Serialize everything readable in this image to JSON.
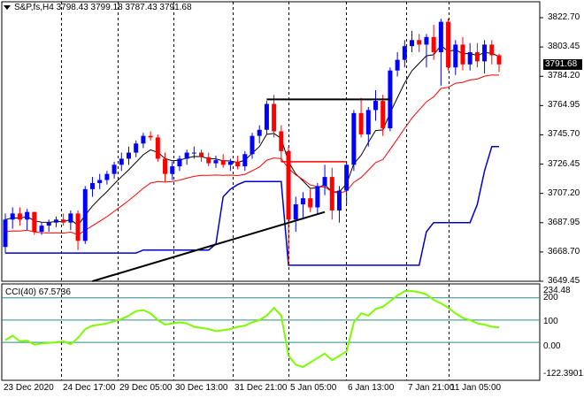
{
  "header": {
    "symbol": "S&P,fs,H4",
    "ohlc": "3798.43 3799.18 3787.43 3791.68"
  },
  "current_price": "3791.68",
  "price_axis": {
    "labels": [
      "3822.70",
      "3803.45",
      "3784.20",
      "3764.95",
      "3745.70",
      "3726.45",
      "3707.20",
      "3687.95",
      "3668.70",
      "3649.45"
    ]
  },
  "cci_panel": {
    "title": "CCI(40) 67.5736",
    "max_label": "234.48",
    "min_label": "-122.3901",
    "levels": [
      "200",
      "100",
      "0.00"
    ]
  },
  "time_axis": {
    "labels": [
      "23 Dec 2020",
      "24 Dec 17:00",
      "29 Dec 05:00",
      "30 Dec 13:00",
      "31 Dec 21:00",
      "5 Jan 05:00",
      "6 Jan 13:00",
      "7 Jan 21:00",
      "11 Jan 05:00"
    ]
  },
  "colors": {
    "bull": "#0000ff",
    "bear": "#ff0000",
    "ma_fast": "#000000",
    "ma_slow": "#ff0000",
    "band": "#0000cd",
    "cci": "#7cfc00",
    "grid": "#000000",
    "level_line": "#2e8b8b"
  },
  "chart_data": {
    "type": "candlestick",
    "y_range": [
      3649.45,
      3822.7
    ],
    "candles": [
      [
        3672,
        3694,
        3668,
        3690
      ],
      [
        3690,
        3698,
        3684,
        3694
      ],
      [
        3694,
        3698,
        3686,
        3690
      ],
      [
        3690,
        3697,
        3683,
        3695
      ],
      [
        3695,
        3695,
        3680,
        3682
      ],
      [
        3682,
        3688,
        3680,
        3686
      ],
      [
        3686,
        3690,
        3682,
        3688
      ],
      [
        3688,
        3692,
        3685,
        3690
      ],
      [
        3690,
        3694,
        3686,
        3688
      ],
      [
        3688,
        3696,
        3683,
        3694
      ],
      [
        3694,
        3696,
        3670,
        3676
      ],
      [
        3676,
        3712,
        3674,
        3710
      ],
      [
        3710,
        3718,
        3705,
        3714
      ],
      [
        3714,
        3720,
        3710,
        3716
      ],
      [
        3716,
        3722,
        3713,
        3720
      ],
      [
        3720,
        3728,
        3717,
        3726
      ],
      [
        3726,
        3734,
        3722,
        3730
      ],
      [
        3730,
        3738,
        3726,
        3734
      ],
      [
        3734,
        3742,
        3731,
        3740
      ],
      [
        3740,
        3747,
        3737,
        3745
      ],
      [
        3745,
        3748,
        3742,
        3744
      ],
      [
        3744,
        3746,
        3728,
        3730
      ],
      [
        3730,
        3734,
        3715,
        3720
      ],
      [
        3720,
        3728,
        3716,
        3725
      ],
      [
        3725,
        3732,
        3722,
        3730
      ],
      [
        3730,
        3736,
        3726,
        3734
      ],
      [
        3734,
        3738,
        3730,
        3734
      ],
      [
        3734,
        3736,
        3728,
        3731
      ],
      [
        3731,
        3734,
        3725,
        3727
      ],
      [
        3727,
        3732,
        3724,
        3729
      ],
      [
        3729,
        3733,
        3724,
        3726
      ],
      [
        3726,
        3730,
        3722,
        3728
      ],
      [
        3728,
        3732,
        3723,
        3725
      ],
      [
        3725,
        3735,
        3722,
        3733
      ],
      [
        3733,
        3747,
        3730,
        3745
      ],
      [
        3745,
        3752,
        3740,
        3749
      ],
      [
        3749,
        3768,
        3746,
        3766
      ],
      [
        3766,
        3772,
        3744,
        3748
      ],
      [
        3748,
        3752,
        3728,
        3735
      ],
      [
        3735,
        3738,
        3660,
        3690
      ],
      [
        3690,
        3705,
        3682,
        3700
      ],
      [
        3700,
        3708,
        3690,
        3704
      ],
      [
        3704,
        3710,
        3695,
        3698
      ],
      [
        3698,
        3714,
        3694,
        3712
      ],
      [
        3712,
        3726,
        3706,
        3718
      ],
      [
        3718,
        3724,
        3690,
        3696
      ],
      [
        3696,
        3712,
        3688,
        3709
      ],
      [
        3709,
        3728,
        3700,
        3726
      ],
      [
        3726,
        3762,
        3722,
        3760
      ],
      [
        3760,
        3770,
        3744,
        3746
      ],
      [
        3746,
        3764,
        3738,
        3762
      ],
      [
        3762,
        3775,
        3755,
        3768
      ],
      [
        3768,
        3772,
        3745,
        3750
      ],
      [
        3750,
        3790,
        3748,
        3788
      ],
      [
        3788,
        3800,
        3784,
        3795
      ],
      [
        3795,
        3808,
        3790,
        3804
      ],
      [
        3804,
        3814,
        3800,
        3808
      ],
      [
        3808,
        3812,
        3800,
        3805
      ],
      [
        3805,
        3812,
        3790,
        3810
      ],
      [
        3810,
        3818,
        3795,
        3800
      ],
      [
        3800,
        3822,
        3778,
        3820
      ],
      [
        3820,
        3822,
        3788,
        3790
      ],
      [
        3790,
        3808,
        3785,
        3805
      ],
      [
        3805,
        3810,
        3788,
        3792
      ],
      [
        3792,
        3806,
        3788,
        3800
      ],
      [
        3800,
        3806,
        3790,
        3794
      ],
      [
        3794,
        3808,
        3786,
        3805
      ],
      [
        3805,
        3808,
        3792,
        3798
      ],
      [
        3798,
        3799,
        3787,
        3792
      ]
    ],
    "lines": {
      "horizontal_black": {
        "value": 3769,
        "from_candle": 36,
        "to_candle": 53
      },
      "horizontal_red": {
        "value": 3728,
        "from_candle": 38,
        "to_candle": 47
      },
      "trendline": {
        "from": [
          12,
          3649.45
        ],
        "to": [
          44,
          3695
        ]
      }
    },
    "cci_values": [
      10,
      30,
      5,
      8,
      -10,
      -5,
      -2,
      0,
      5,
      -8,
      20,
      60,
      75,
      80,
      85,
      95,
      105,
      120,
      140,
      145,
      130,
      100,
      80,
      85,
      90,
      85,
      70,
      65,
      60,
      50,
      55,
      60,
      70,
      75,
      90,
      100,
      120,
      155,
      120,
      -60,
      -100,
      -110,
      -90,
      -70,
      -50,
      -80,
      -60,
      -40,
      90,
      130,
      120,
      150,
      160,
      185,
      210,
      230,
      230,
      225,
      215,
      190,
      175,
      155,
      130,
      110,
      100,
      85,
      80,
      70,
      67
    ],
    "cci_range": [
      -122.3901,
      234.48
    ]
  }
}
